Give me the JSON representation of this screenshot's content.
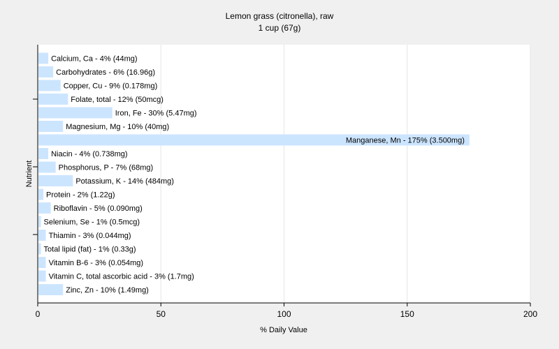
{
  "chart_data": {
    "type": "bar",
    "orientation": "horizontal",
    "title": "Lemon grass (citronella), raw",
    "subtitle": "1 cup (67g)",
    "xlabel": "% Daily Value",
    "ylabel": "Nutrient",
    "xlim": [
      0,
      200
    ],
    "xticks": [
      0,
      50,
      100,
      150,
      200
    ],
    "grid": true,
    "bar_color": "#cce5ff",
    "background_color": "#f0f0f0",
    "plot_background_color": "#ffffff",
    "categories": [
      "Calcium, Ca",
      "Carbohydrates",
      "Copper, Cu",
      "Folate, total",
      "Iron, Fe",
      "Magnesium, Mg",
      "Manganese, Mn",
      "Niacin",
      "Phosphorus, P",
      "Potassium, K",
      "Protein",
      "Riboflavin",
      "Selenium, Se",
      "Thiamin",
      "Total lipid (fat)",
      "Vitamin B-6",
      "Vitamin C, total ascorbic acid",
      "Zinc, Zn"
    ],
    "values": [
      4,
      6,
      9,
      12,
      30,
      10,
      175,
      4,
      7,
      14,
      2,
      5,
      1,
      3,
      1,
      3,
      3,
      10
    ],
    "labels": [
      "Calcium, Ca - 4% (44mg)",
      "Carbohydrates - 6% (16.96g)",
      "Copper, Cu - 9% (0.178mg)",
      "Folate, total - 12% (50mcg)",
      "Iron, Fe - 30% (5.47mg)",
      "Magnesium, Mg - 10% (40mg)",
      "Manganese, Mn - 175% (3.500mg)",
      "Niacin - 4% (0.738mg)",
      "Phosphorus, P - 7% (68mg)",
      "Potassium, K - 14% (484mg)",
      "Protein - 2% (1.22g)",
      "Riboflavin - 5% (0.090mg)",
      "Selenium, Se - 1% (0.5mcg)",
      "Thiamin - 3% (0.044mg)",
      "Total lipid (fat) - 1% (0.33g)",
      "Vitamin B-6 - 3% (0.054mg)",
      "Vitamin C, total ascorbic acid - 3% (1.7mg)",
      "Zinc, Zn - 10% (1.49mg)"
    ]
  }
}
